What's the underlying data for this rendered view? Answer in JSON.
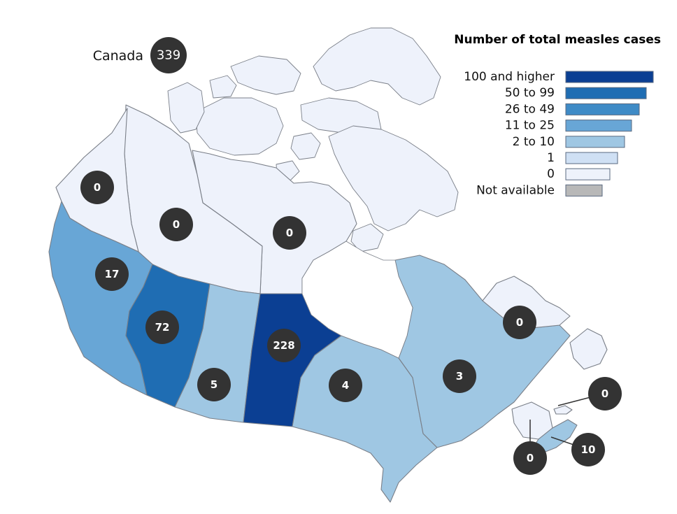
{
  "legend": {
    "title": "Number of total measles cases",
    "items": [
      {
        "label": "100 and higher",
        "color": "#0b3f93"
      },
      {
        "label": "50 to 99",
        "color": "#1f6db3"
      },
      {
        "label": "26 to 49",
        "color": "#3f8bc6"
      },
      {
        "label": "11 to 25",
        "color": "#68a6d6"
      },
      {
        "label": "2 to 10",
        "color": "#9fc7e3"
      },
      {
        "label": "1",
        "color": "#cfe0f4"
      },
      {
        "label": "0",
        "color": "#eef2fb"
      },
      {
        "label": "Not available",
        "color": "#b8b8b8"
      }
    ]
  },
  "national": {
    "label": "Canada",
    "cases": "339"
  },
  "regions": {
    "yukon": {
      "cases": "0",
      "color": "#eef2fb"
    },
    "northwest_territories": {
      "cases": "0",
      "color": "#eef2fb"
    },
    "nunavut": {
      "cases": "0",
      "color": "#eef2fb"
    },
    "british_columbia": {
      "cases": "17",
      "color": "#68a6d6"
    },
    "alberta": {
      "cases": "72",
      "color": "#1f6db3"
    },
    "saskatchewan": {
      "cases": "5",
      "color": "#9fc7e3"
    },
    "manitoba": {
      "cases": "228",
      "color": "#0b3f93"
    },
    "ontario": {
      "cases": "4",
      "color": "#9fc7e3"
    },
    "quebec": {
      "cases": "3",
      "color": "#9fc7e3"
    },
    "newfoundland_and_labrador": {
      "cases": "0",
      "color": "#eef2fb"
    },
    "prince_edward_island": {
      "cases": "0",
      "color": "#eef2fb"
    },
    "new_brunswick": {
      "cases": "0",
      "color": "#eef2fb"
    },
    "nova_scotia": {
      "cases": "10",
      "color": "#9fc7e3"
    }
  }
}
